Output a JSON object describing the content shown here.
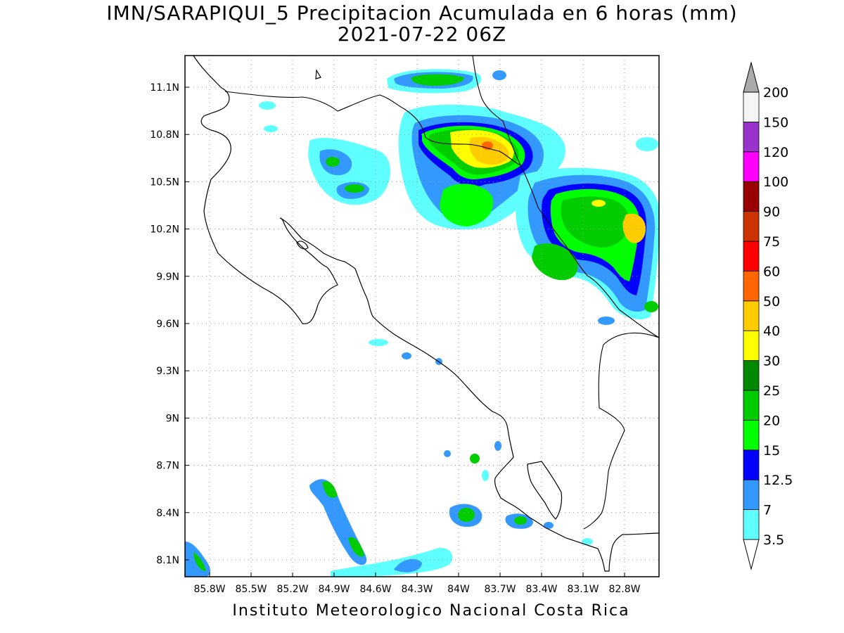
{
  "title": {
    "line1": "IMN/SARAPIQUI_5 Precipitacion Acumulada en 6 horas (mm)",
    "line2": "2021-07-22 06Z"
  },
  "footer": "Instituto Meteorologico Nacional Costa Rica",
  "map": {
    "lon_range": [
      -86.05,
      -82.6
    ],
    "lat_range": [
      8.0,
      11.3
    ],
    "lat_ticks": [
      "11.1N",
      "10.8N",
      "10.5N",
      "10.2N",
      "9.9N",
      "9.6N",
      "9.3N",
      "9N",
      "8.7N",
      "8.4N",
      "8.1N"
    ],
    "lon_ticks": [
      "85.8W",
      "85.5W",
      "85.2W",
      "84.9W",
      "84.6W",
      "84.3W",
      "84W",
      "83.7W",
      "83.4W",
      "83.1W",
      "82.8W"
    ],
    "grid": "dotted"
  },
  "colorbar": {
    "levels": [
      "3.5",
      "7",
      "12.5",
      "15",
      "20",
      "25",
      "30",
      "40",
      "50",
      "60",
      "75",
      "90",
      "100",
      "120",
      "150",
      "200"
    ],
    "colors": [
      "#ffffff",
      "#60ffff",
      "#3399ff",
      "#0000ff",
      "#00ff00",
      "#00cc00",
      "#008800",
      "#ffff00",
      "#ffcc00",
      "#ff6600",
      "#ff0000",
      "#cc3300",
      "#990000",
      "#ff00ff",
      "#9933cc",
      "#f5f5f5",
      "#aaaaaa"
    ],
    "arrows": "both"
  },
  "colors": {
    "coast": "#000000",
    "grid": "#999999"
  }
}
